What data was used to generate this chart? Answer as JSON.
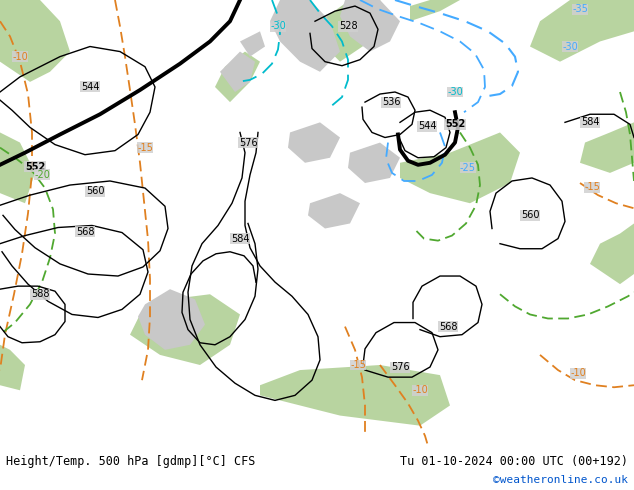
{
  "title_left": "Height/Temp. 500 hPa [gdmp][°C] CFS",
  "title_right": "Tu 01-10-2024 00:00 UTC (00+192)",
  "credit": "©weatheronline.co.uk",
  "figsize": [
    6.34,
    4.9
  ],
  "dpi": 100,
  "credit_color": "#0055cc",
  "land_green": "#b8d4a0",
  "land_gray": "#c8c8c8",
  "sea_gray": "#d0d0d0",
  "height_color": "#000000",
  "temp_orange": "#e08020",
  "temp_green": "#50a830",
  "temp_cyan": "#00bbcc",
  "temp_blue": "#44aaff",
  "bottom_bg": "#f0f0f0",
  "map_bg": "#c8c8c8"
}
